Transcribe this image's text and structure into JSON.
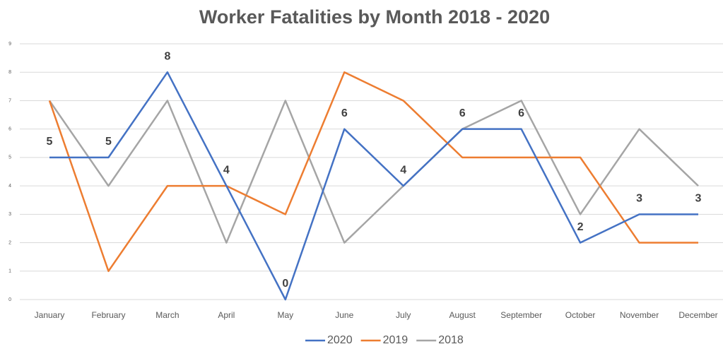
{
  "chart_data": {
    "type": "line",
    "title": "Worker Fatalities by Month 2018 - 2020",
    "categories": [
      "January",
      "February",
      "March",
      "April",
      "May",
      "June",
      "July",
      "August",
      "September",
      "October",
      "November",
      "December"
    ],
    "series": [
      {
        "name": "2020",
        "color": "#4472c4",
        "data_labels": true,
        "values": [
          5,
          5,
          8,
          4,
          0,
          6,
          4,
          6,
          6,
          2,
          3,
          3
        ]
      },
      {
        "name": "2019",
        "color": "#ed7d31",
        "data_labels": false,
        "values": [
          7,
          1,
          4,
          4,
          3,
          8,
          7,
          5,
          5,
          5,
          2,
          2
        ]
      },
      {
        "name": "2018",
        "color": "#a5a5a5",
        "data_labels": false,
        "values": [
          7,
          4,
          7,
          2,
          7,
          2,
          4,
          6,
          7,
          3,
          6,
          4
        ]
      }
    ],
    "ylim": [
      0,
      9
    ],
    "yticks": [
      0,
      1,
      2,
      3,
      4,
      5,
      6,
      7,
      8,
      9
    ],
    "grid": true,
    "legend": "bottom"
  }
}
